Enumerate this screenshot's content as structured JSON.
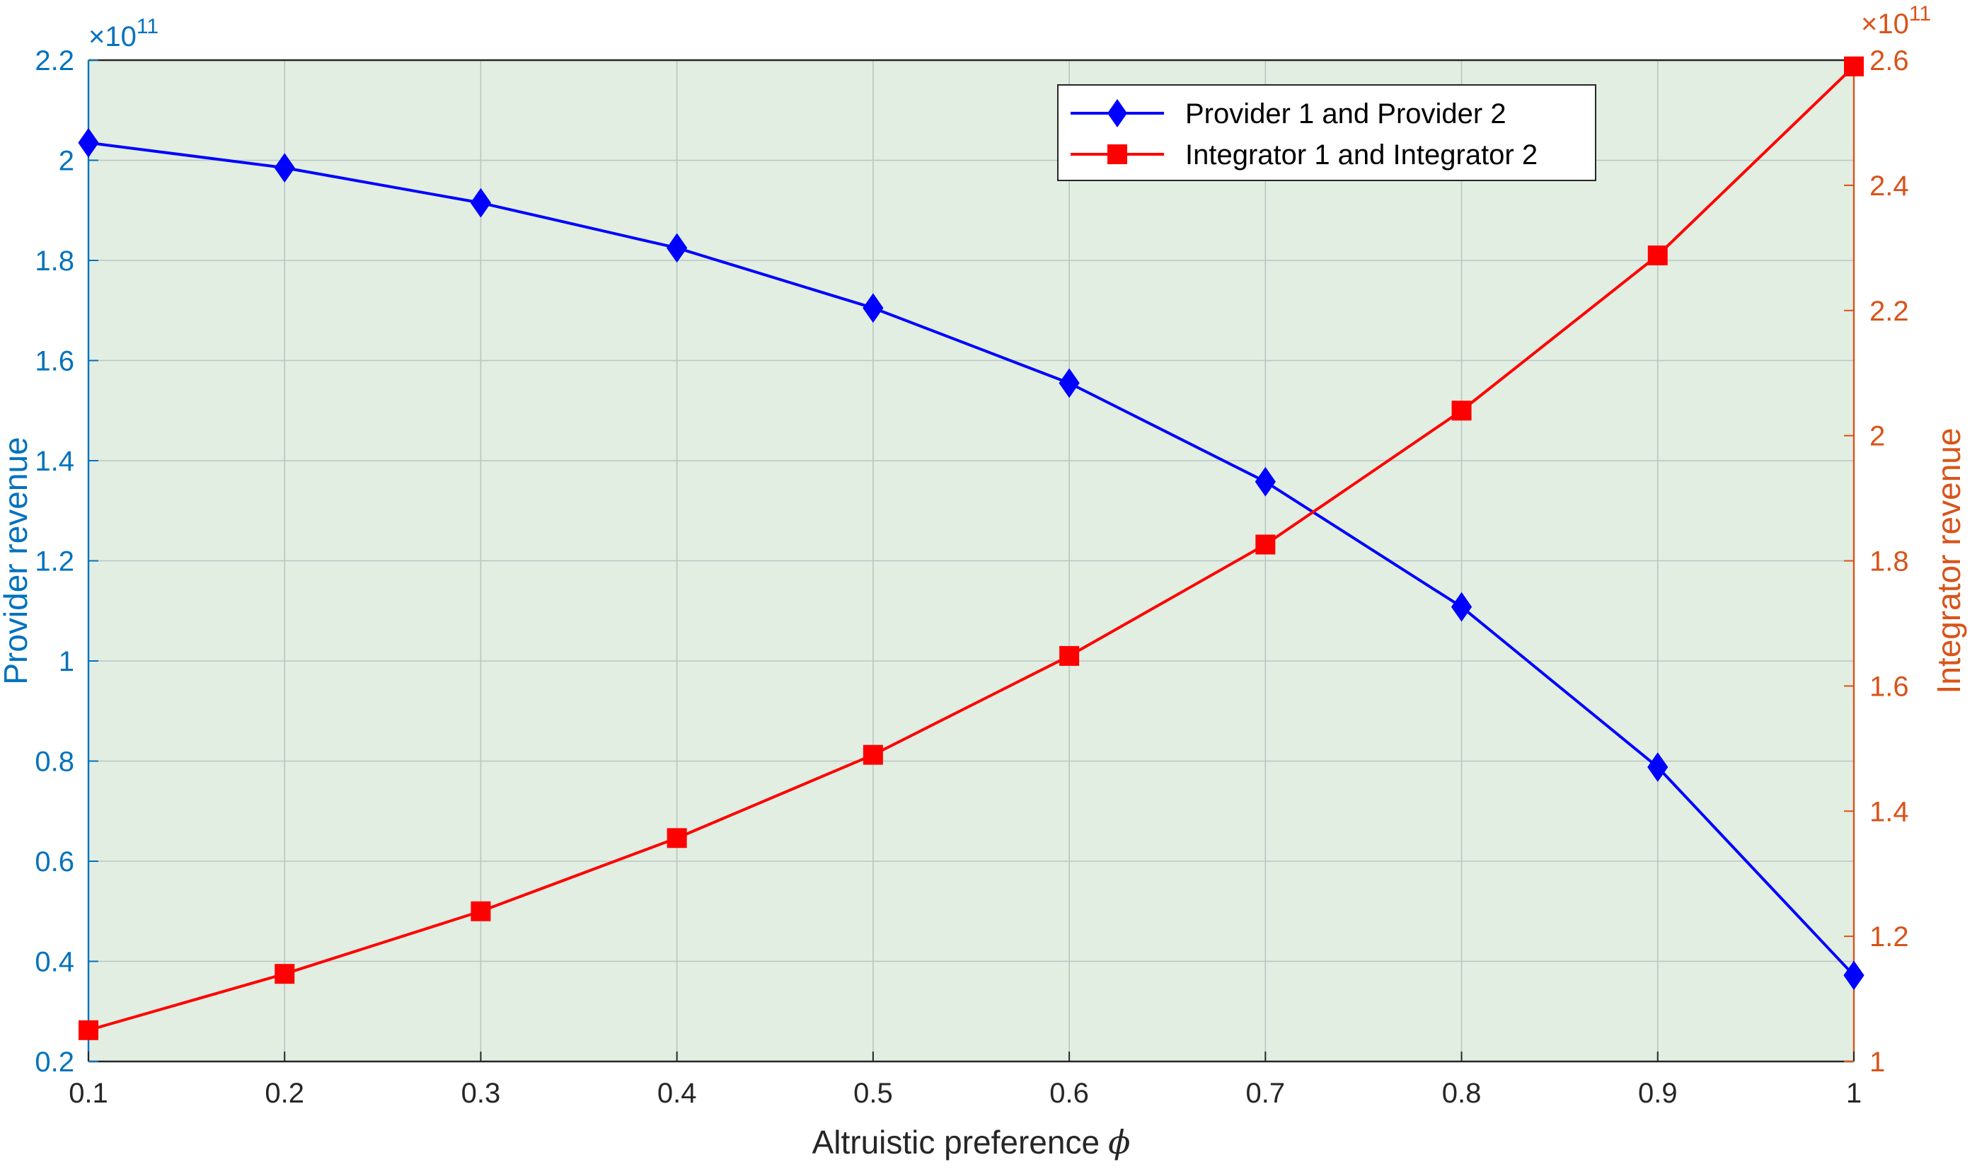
{
  "chart_data": {
    "type": "line",
    "xlabel": "Altruistic preference",
    "xlabel_symbol": "ϕ",
    "ylabel_left": "Provider revenue",
    "ylabel_right": "Integrator revenue",
    "left_multiplier": "×10",
    "left_exponent": "11",
    "right_multiplier": "×10",
    "right_exponent": "11",
    "xlim": [
      0.1,
      1
    ],
    "ylim_left": [
      0.2,
      2.2
    ],
    "ylim_right": [
      1,
      2.6
    ],
    "x_ticks": [
      "0.1",
      "0.2",
      "0.3",
      "0.4",
      "0.5",
      "0.6",
      "0.7",
      "0.8",
      "0.9",
      "1"
    ],
    "y_ticks_left": [
      "0.2",
      "0.4",
      "0.6",
      "0.8",
      "1",
      "1.2",
      "1.4",
      "1.6",
      "1.8",
      "2",
      "2.2"
    ],
    "y_ticks_right": [
      "1",
      "1.2",
      "1.4",
      "1.6",
      "1.8",
      "2",
      "2.2",
      "2.4",
      "2.6"
    ],
    "grid": true,
    "legend_position": "top-right",
    "background_color": "#E2EEE2",
    "x": [
      0.1,
      0.2,
      0.3,
      0.4,
      0.5,
      0.6,
      0.7,
      0.8,
      0.9,
      1.0
    ],
    "series": [
      {
        "name": "Provider 1 and Provider 2",
        "axis": "left",
        "color": "#0000FF",
        "marker": "diamond",
        "values": [
          2.035,
          1.985,
          1.915,
          1.825,
          1.705,
          1.555,
          1.358,
          1.108,
          0.788,
          0.372
        ]
      },
      {
        "name": "Integrator 1 and Integrator 2",
        "axis": "right",
        "color": "#FF0000",
        "marker": "square",
        "values": [
          1.05,
          1.14,
          1.24,
          1.357,
          1.49,
          1.648,
          1.826,
          2.04,
          2.288,
          2.59
        ]
      }
    ]
  }
}
